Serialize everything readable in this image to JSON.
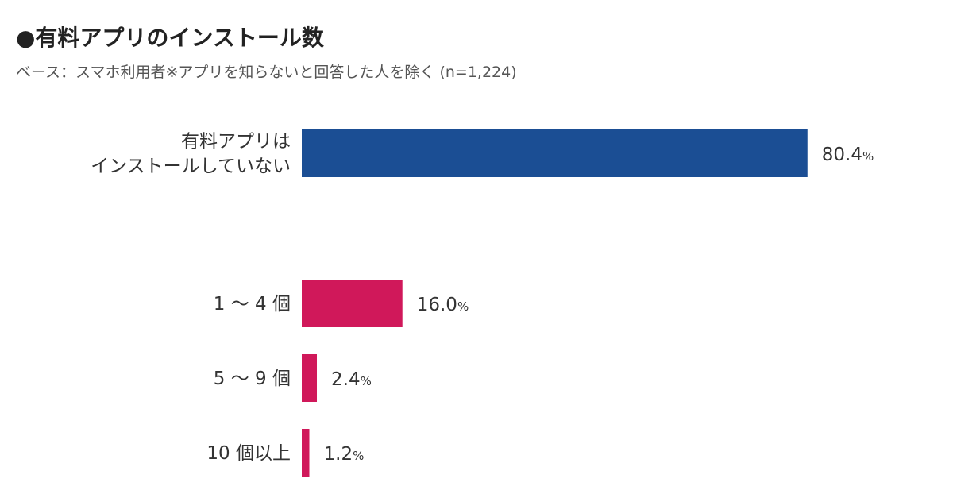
{
  "header": {
    "title": "●有料アプリのインストール数",
    "subtitle": "ベース：スマホ利用者※アプリを知らないと回答した人を除く (n=1,224)"
  },
  "chart_data": {
    "type": "bar",
    "orientation": "horizontal",
    "categories": [
      [
        "有料アプリは",
        "インストールしていない"
      ],
      [
        "1 〜 4 個"
      ],
      [
        "5 〜 9 個"
      ],
      [
        "10 個以上"
      ]
    ],
    "values": [
      80.4,
      16.0,
      2.4,
      1.2
    ],
    "value_labels": [
      "80.4",
      "16.0",
      "2.4",
      "1.2"
    ],
    "unit": "%",
    "colors": [
      "#1b4e94",
      "#d0185a",
      "#d0185a",
      "#d0185a"
    ],
    "xlim": [
      0,
      100
    ]
  }
}
